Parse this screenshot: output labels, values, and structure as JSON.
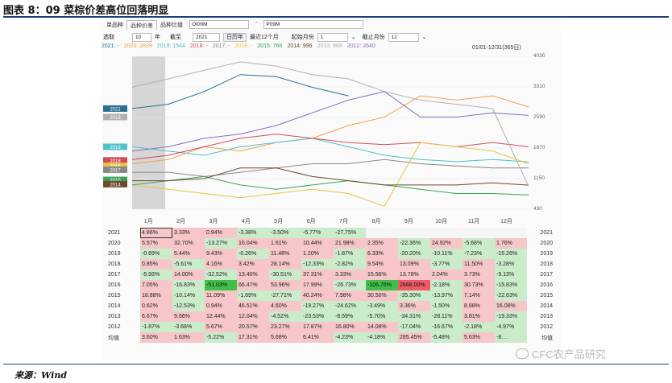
{
  "title": "图表 8：09 菜棕价差高位回落明显",
  "tabs": {
    "t1": "单品种",
    "t2": "品种价差",
    "t3": "品种比值",
    "input1": "OI09M",
    "sep": "-",
    "input2": "P09M"
  },
  "controls": {
    "select_label": "选取",
    "years_value": "10",
    "years_unit": "年",
    "until_label": "截至",
    "until_value": "2021",
    "btn_calendar": "日历年",
    "btn_recent": "最近12个月",
    "start_label": "起始月份",
    "start_value": "1",
    "end_label": "截止月份",
    "end_value": "12"
  },
  "range_label": "01/01-12/31(365日)",
  "chart_data": {
    "type": "line",
    "legend": [
      {
        "name": "2021: -",
        "color": "#2a6f8f"
      },
      {
        "name": "2020: 2839",
        "color": "#f2a24a"
      },
      {
        "name": "2019: 1544",
        "color": "#4fc1c7"
      },
      {
        "name": "2018: -",
        "color": "#d24b5a"
      },
      {
        "name": "2017: -",
        "color": "#888888"
      },
      {
        "name": "2016: -",
        "color": "#e8c640"
      },
      {
        "name": "2015: 766",
        "color": "#3aa35a"
      },
      {
        "name": "2014: 996",
        "color": "#6b4a2e"
      },
      {
        "name": "2013: 968",
        "color": "#b0b0b0"
      },
      {
        "name": "2012: 2640",
        "color": "#8a6bbf"
      }
    ],
    "y_ticks": [
      "4030",
      "3310",
      "2590",
      "1870",
      "1150",
      "430"
    ],
    "y_range": [
      430,
      4030
    ],
    "x_months": [
      "1月",
      "2月",
      "3月",
      "4月",
      "5月",
      "6月",
      "7月",
      "8月",
      "9月",
      "10月",
      "11月",
      "12月"
    ],
    "end_labels": [
      "2021",
      "2013",
      "2019",
      "2018",
      "2016",
      "2017",
      "2015",
      "2014"
    ],
    "series_end": [
      {
        "year": "2021",
        "color": "#2a6f8f",
        "values": [
          2800,
          2900,
          3200,
          3600,
          3550,
          3300,
          3100
        ]
      },
      {
        "year": "2020",
        "color": "#f2a24a",
        "values": [
          1500,
          1600,
          1900,
          1800,
          2000,
          2100,
          2400,
          2600,
          3100,
          3000,
          3100,
          2839
        ]
      },
      {
        "year": "2019",
        "color": "#4fc1c7",
        "values": [
          1900,
          1800,
          1700,
          1900,
          2000,
          2100,
          1900,
          1700,
          1600,
          1550,
          1600,
          1544
        ]
      },
      {
        "year": "2018",
        "color": "#d24b5a",
        "values": [
          1600,
          1700,
          1900,
          2100,
          2200,
          2100,
          2000,
          1950,
          2000,
          1900,
          2000,
          1900
        ]
      },
      {
        "year": "2017",
        "color": "#888888",
        "values": [
          1300,
          1300,
          1200,
          1300,
          1400,
          1500,
          1500,
          1600,
          1500,
          1450,
          1400,
          1400
        ]
      },
      {
        "year": "2016",
        "color": "#e8c640",
        "values": [
          1000,
          900,
          800,
          700,
          800,
          900,
          800,
          500,
          2000,
          1900,
          1800,
          1500
        ]
      },
      {
        "year": "2015",
        "color": "#3aa35a",
        "values": [
          1000,
          1100,
          1200,
          1000,
          900,
          1000,
          1100,
          1000,
          900,
          800,
          800,
          766
        ]
      },
      {
        "year": "2014",
        "color": "#6b4a2e",
        "values": [
          1100,
          1100,
          1150,
          1400,
          1400,
          1200,
          1100,
          1000,
          1000,
          1000,
          1050,
          996
        ]
      },
      {
        "year": "2013",
        "color": "#b0b0b0",
        "values": [
          3300,
          3500,
          3700,
          3900,
          3800,
          3600,
          3500,
          3200,
          3000,
          2900,
          2800,
          968
        ]
      },
      {
        "year": "2012",
        "color": "#8a6bbf",
        "values": [
          1800,
          1900,
          2100,
          2200,
          2400,
          2700,
          3000,
          3200,
          2600,
          2600,
          2700,
          2640
        ]
      }
    ]
  },
  "table": {
    "rows": [
      {
        "year": "2021",
        "cells": [
          "4.86%",
          "3.33%",
          "0.94%",
          "-3.38%",
          "-3.50%",
          "-5.77%",
          "-27.75%",
          "",
          "",
          "",
          "",
          ""
        ],
        "avg": false
      },
      {
        "year": "2020",
        "cells": [
          "5.57%",
          "32.70%",
          "-13.27%",
          "16.04%",
          "1.61%",
          "10.44%",
          "21.98%",
          "2.35%",
          "-22.36%",
          "24.92%",
          "-5.68%",
          "1.76%"
        ]
      },
      {
        "year": "2019",
        "cells": [
          "-0.69%",
          "5.44%",
          "9.43%",
          "-0.26%",
          "11.48%",
          "1.20%",
          "-1.87%",
          "6.33%",
          "-20.20%",
          "-10.11%",
          "-7.23%",
          "-15.26%"
        ]
      },
      {
        "year": "2018",
        "cells": [
          "0.85%",
          "-5.61%",
          "4.16%",
          "3.42%",
          "28.14%",
          "-12.33%",
          "-2.82%",
          "9.54%",
          "13.09%",
          "-3.77%",
          "11.50%",
          "-3.28%"
        ]
      },
      {
        "year": "2017",
        "cells": [
          "-5.93%",
          "14.00%",
          "-32.52%",
          "13.40%",
          "-30.51%",
          "37.31%",
          "3.33%",
          "15.56%",
          "13.78%",
          "2.04%",
          "3.73%",
          "-9.13%"
        ]
      },
      {
        "year": "2016",
        "cells": [
          "7.05%",
          "-16.83%",
          "-51.03%",
          "66.47%",
          "53.96%",
          "17.99%",
          "-26.73%",
          "-106.76%",
          "2668.00%",
          "-2.18%",
          "30.73%",
          "-15.83%"
        ]
      },
      {
        "year": "2015",
        "cells": [
          "18.88%",
          "-10.14%",
          "11.09%",
          "-1.69%",
          "-27.71%",
          "40.24%",
          "7.98%",
          "30.50%",
          "-35.30%",
          "-13.97%",
          "7.14%",
          "-22.63%"
        ]
      },
      {
        "year": "2014",
        "cells": [
          "0.62%",
          "-12.53%",
          "0.94%",
          "46.51%",
          "4.60%",
          "-19.27%",
          "-24.62%",
          "-3.49%",
          "3.36%",
          "-1.50%",
          "8.88%",
          "16.08%"
        ]
      },
      {
        "year": "2013",
        "cells": [
          "6.67%",
          "9.66%",
          "12.44%",
          "12.04%",
          "-4.52%",
          "-23.53%",
          "-8.59%",
          "-5.70%",
          "-34.31%",
          "-28.11%",
          "3.81%",
          "-19.33%"
        ]
      },
      {
        "year": "2012",
        "cells": [
          "-1.87%",
          "-3.68%",
          "5.67%",
          "20.57%",
          "23.27%",
          "17.87%",
          "16.80%",
          "14.08%",
          "-17.04%",
          "-16.67%",
          "-2.18%",
          "-4.97%"
        ]
      },
      {
        "year": "均值",
        "cells": [
          "3.60%",
          "1.63%",
          "-5.22%",
          "17.31%",
          "5.68%",
          "6.41%",
          "-4.23%",
          "-4.18%",
          "285.45%",
          "-5.48%",
          "5.63%",
          "-8.…"
        ]
      }
    ]
  },
  "source": "来源：Wind",
  "watermark": "CFC农产品研究",
  "colors": {
    "accent": "#1f3d7a",
    "pos": "#f7c6c9",
    "neg": "#cbeccb"
  }
}
